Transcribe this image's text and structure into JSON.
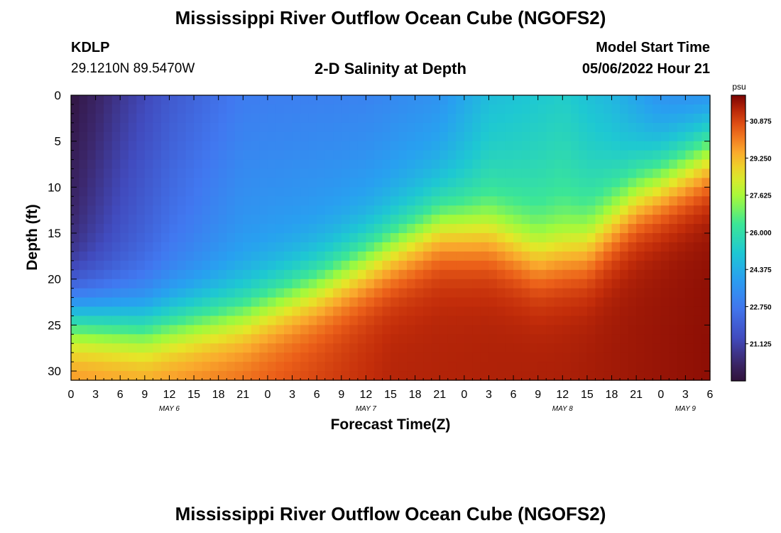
{
  "header": {
    "title": "Mississippi River Outflow Ocean Cube (NGOFS2)",
    "station": "KDLP",
    "coords": "29.1210N  89.5470W",
    "subtitle": "2-D Salinity at Depth",
    "start_label": "Model Start Time",
    "start_value": "05/06/2022 Hour 21",
    "footer_title": "Mississippi River Outflow Ocean Cube (NGOFS2)"
  },
  "chart_data": {
    "type": "heatmap",
    "title": "2-D Salinity at Depth",
    "xlabel": "Forecast Time(Z)",
    "ylabel": "Depth (ft)",
    "x_range_hours": [
      0,
      78
    ],
    "y_range_ft": [
      0,
      31
    ],
    "y_inverted": true,
    "x_tick_labels": [
      "0",
      "3",
      "6",
      "9",
      "12",
      "15",
      "18",
      "21",
      "0",
      "3",
      "6",
      "9",
      "12",
      "15",
      "18",
      "21",
      "0",
      "3",
      "6",
      "9",
      "12",
      "15",
      "18",
      "21",
      "0",
      "3",
      "6"
    ],
    "y_ticks": [
      0,
      5,
      10,
      15,
      20,
      25,
      30
    ],
    "date_labels": [
      {
        "label": "MAY 6",
        "hour": 12
      },
      {
        "label": "MAY 7",
        "hour": 36
      },
      {
        "label": "MAY 8",
        "hour": 60
      },
      {
        "label": "MAY 9",
        "hour": 75
      }
    ],
    "colorbar": {
      "unit": "psu",
      "min": 19.5,
      "max": 32.0,
      "ticks": [
        21.125,
        22.75,
        24.375,
        26.0,
        27.625,
        29.25,
        30.875
      ],
      "tick_labels": [
        "21.125",
        "22.750",
        "24.375",
        "26.000",
        "27.625",
        "29.250",
        "30.875"
      ]
    },
    "surface_salinity_psu": [
      {
        "hour": 0,
        "value": 19.6
      },
      {
        "hour": 6,
        "value": 20.8
      },
      {
        "hour": 12,
        "value": 21.8
      },
      {
        "hour": 21,
        "value": 22.9
      },
      {
        "hour": 36,
        "value": 23.1
      },
      {
        "hour": 45,
        "value": 23.6
      },
      {
        "hour": 51,
        "value": 24.8
      },
      {
        "hour": 60,
        "value": 25.3
      },
      {
        "hour": 66,
        "value": 24.6
      },
      {
        "hour": 72,
        "value": 23.5
      },
      {
        "hour": 78,
        "value": 23.2
      }
    ],
    "halocline_depth_ft": [
      {
        "hour": 0,
        "value": 24.0
      },
      {
        "hour": 9,
        "value": 25.0
      },
      {
        "hour": 21,
        "value": 23.5
      },
      {
        "hour": 30,
        "value": 20.5
      },
      {
        "hour": 39,
        "value": 16.5
      },
      {
        "hour": 45,
        "value": 14.0
      },
      {
        "hour": 51,
        "value": 14.5
      },
      {
        "hour": 57,
        "value": 17.0
      },
      {
        "hour": 63,
        "value": 16.0
      },
      {
        "hour": 69,
        "value": 11.0
      },
      {
        "hour": 78,
        "value": 6.5
      }
    ],
    "bottom_salinity_psu": [
      {
        "hour": 0,
        "value": 30.2
      },
      {
        "hour": 9,
        "value": 30.0
      },
      {
        "hour": 21,
        "value": 30.5
      },
      {
        "hour": 39,
        "value": 31.4
      },
      {
        "hour": 60,
        "value": 31.5
      },
      {
        "hour": 78,
        "value": 31.8
      }
    ]
  }
}
